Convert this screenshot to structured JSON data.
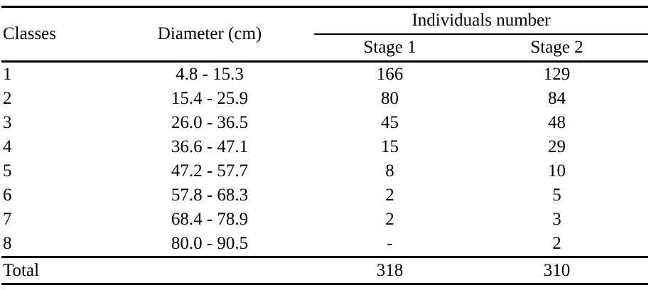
{
  "colors": {
    "background": "#ffffff",
    "text": "#000000",
    "rule": "#000000"
  },
  "table": {
    "headers": {
      "classes": "Classes",
      "diameter": "Diameter (cm)",
      "individuals_number": "Individuals number",
      "stage1": "Stage 1",
      "stage2": "Stage 2"
    },
    "rows": [
      {
        "class": "1",
        "diameter": "4.8 - 15.3",
        "stage1": "166",
        "stage2": "129"
      },
      {
        "class": "2",
        "diameter": "15.4 - 25.9",
        "stage1": "80",
        "stage2": "84"
      },
      {
        "class": "3",
        "diameter": "26.0 - 36.5",
        "stage1": "45",
        "stage2": "48"
      },
      {
        "class": "4",
        "diameter": "36.6 - 47.1",
        "stage1": "15",
        "stage2": "29"
      },
      {
        "class": "5",
        "diameter": "47.2 - 57.7",
        "stage1": "8",
        "stage2": "10"
      },
      {
        "class": "6",
        "diameter": "57.8 - 68.3",
        "stage1": "2",
        "stage2": "5"
      },
      {
        "class": "7",
        "diameter": "68.4 - 78.9",
        "stage1": "2",
        "stage2": "3"
      },
      {
        "class": "8",
        "diameter": "80.0 - 90.5",
        "stage1": "-",
        "stage2": "2"
      }
    ],
    "total": {
      "label": "Total",
      "diameter": "",
      "stage1": "318",
      "stage2": "310"
    }
  }
}
